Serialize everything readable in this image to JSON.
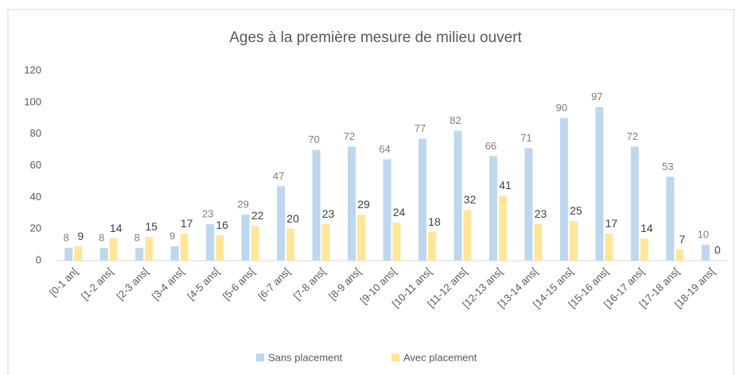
{
  "chart_data": {
    "type": "bar",
    "title": "Ages à la première mesure de milieu ouvert",
    "categories": [
      "[0-1 an[",
      "[1-2 ans[",
      "[2-3 ans[",
      "[3-4 ans[",
      "[4-5 ans[",
      "[5-6 ans[",
      "[6-7 ans[",
      "[7-8 ans[",
      "[8-9 ans[",
      "[9-10 ans[",
      "[10-11 ans[",
      "[11-12 ans[",
      "[12-13 ans[",
      "[13-14 ans[",
      "[14-15 ans[",
      "[15-16 ans[",
      "[16-17 ans[",
      "[17-18 ans[",
      "[18-19 ans["
    ],
    "series": [
      {
        "name": "Sans placement",
        "color": "#bdd7ee",
        "values": [
          8,
          8,
          8,
          9,
          23,
          29,
          47,
          70,
          72,
          64,
          77,
          82,
          66,
          71,
          90,
          97,
          72,
          53,
          10
        ]
      },
      {
        "name": "Avec placement",
        "color": "#ffe699",
        "values": [
          9,
          14,
          15,
          17,
          16,
          22,
          20,
          23,
          29,
          24,
          18,
          32,
          41,
          23,
          25,
          17,
          14,
          7,
          0
        ]
      }
    ],
    "ylim": [
      0,
      120
    ],
    "yticks": [
      0,
      20,
      40,
      60,
      80,
      100,
      120
    ],
    "grid": false,
    "legend": "bottom"
  }
}
